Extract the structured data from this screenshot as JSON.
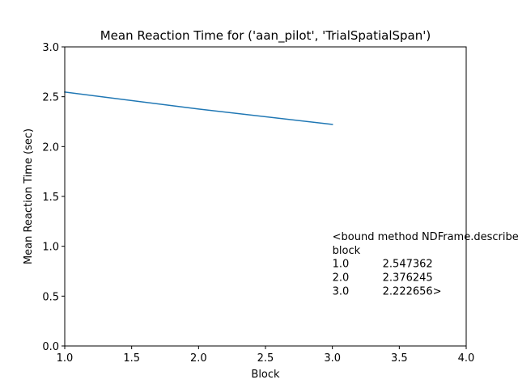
{
  "chart_data": {
    "type": "line",
    "title": "Mean Reaction Time for ('aan_pilot', 'TrialSpatialSpan')",
    "xlabel": "Block",
    "ylabel": "Mean Reaction Time (sec)",
    "xlim": [
      1.0,
      4.0
    ],
    "ylim": [
      0.0,
      3.0
    ],
    "x_ticks": [
      1.0,
      1.5,
      2.0,
      2.5,
      3.0,
      3.5,
      4.0
    ],
    "x_tick_labels": [
      "1.0",
      "1.5",
      "2.0",
      "2.5",
      "3.0",
      "3.5",
      "4.0"
    ],
    "y_ticks": [
      0.0,
      0.5,
      1.0,
      1.5,
      2.0,
      2.5,
      3.0
    ],
    "y_tick_labels": [
      "0.0",
      "0.5",
      "1.0",
      "1.5",
      "2.0",
      "2.5",
      "3.0"
    ],
    "grid": false,
    "legend": "none",
    "series": [
      {
        "color": "#1f77b4",
        "x": [
          1.0,
          2.0,
          3.0
        ],
        "values": [
          2.547362,
          2.376245,
          2.222656
        ]
      }
    ],
    "annotation": {
      "x": 3.0,
      "y": 0.5,
      "lines": [
        {
          "left": "<bound method NDFrame.describe of",
          "right": ""
        },
        {
          "left": "block",
          "right": ""
        },
        {
          "left": "1.0",
          "right": "2.547362"
        },
        {
          "left": "2.0",
          "right": "2.376245"
        },
        {
          "left": "3.0",
          "right": "2.222656>"
        }
      ]
    }
  }
}
